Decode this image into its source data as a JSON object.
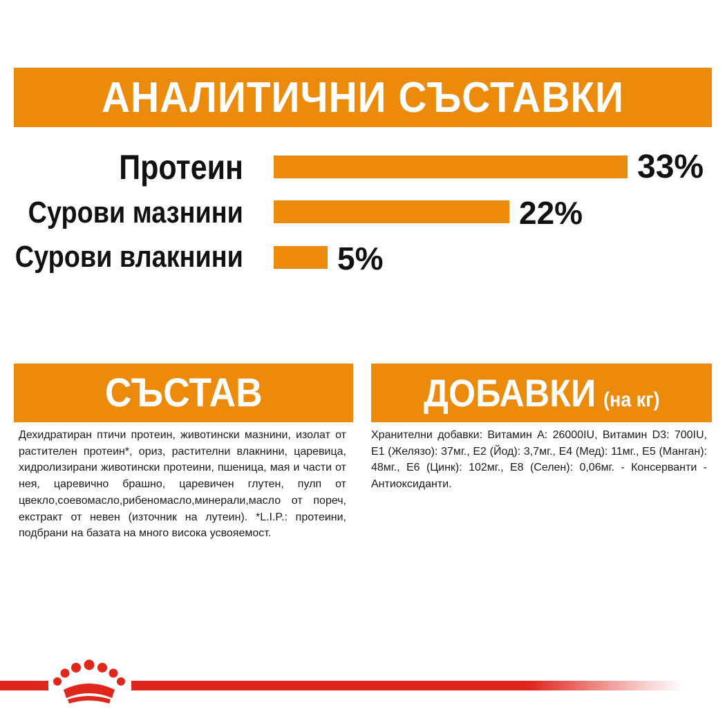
{
  "analytic": {
    "title": "Аналитични съставки",
    "nutrients": [
      {
        "label": "Протеин",
        "value_text": "33%",
        "percent": 33
      },
      {
        "label": "Сурови мазнини",
        "value_text": "22%",
        "percent": 22
      },
      {
        "label": "Сурови влакнини",
        "value_text": "5%",
        "percent": 5
      }
    ]
  },
  "composition": {
    "title": "Състав",
    "text": "Дехидратиран птичи протеин, животински мазнини, изолат от растителен протеин*, ориз, растителни влакнини, царевица, хидролизирани животински протеини, пшеница, мая и части от нея, царевично брашно, царевичен глутен, пулп от цвекло,соевомасло,рибеномасло,минерали,масло от пореч, екстракт от невен (източник на лутеин). *L.I.P.: протеини, подбрани на базата на много висока усвояемост."
  },
  "additives": {
    "title": "Добавки",
    "subtitle": "(на кг)",
    "text": "Хранителни добавки: Витамин А: 26000IU, Витамин D3: 700IU, Е1 (Желязо): 37мг., Е2 (Йод): 3,7мг., Е4 (Мед): 11мг., Е5 (Манган): 48мг., Е6 (Цинк): 102мг., Е8 (Селен): 0,06мг. - Консерванти - Антиоксиданти."
  },
  "colors": {
    "accent_orange": "#ec8a0b",
    "brand_red": "#e1261c"
  },
  "footer": {
    "logo_icon": "crown-icon"
  }
}
